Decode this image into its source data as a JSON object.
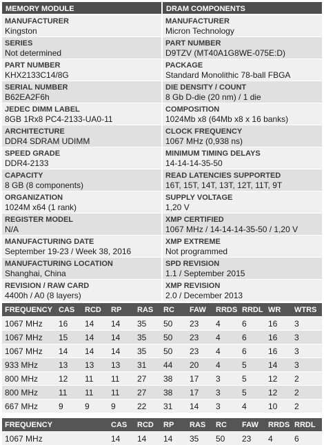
{
  "headers": {
    "left": "MEMORY MODULE",
    "right": "DRAM COMPONENTS"
  },
  "rows": [
    {
      "l": {
        "label": "MANUFACTURER",
        "value": "Kingston"
      },
      "r": {
        "label": "MANUFACTURER",
        "value": "Micron Technology"
      }
    },
    {
      "l": {
        "label": "SERIES",
        "value": "Not determined"
      },
      "r": {
        "label": "PART NUMBER",
        "value": "D9TZV (MT40A1G8WE-075E:D)"
      }
    },
    {
      "l": {
        "label": "PART NUMBER",
        "value": "KHX2133C14/8G"
      },
      "r": {
        "label": "PACKAGE",
        "value": "Standard Monolithic 78-ball FBGA"
      }
    },
    {
      "l": {
        "label": "SERIAL NUMBER",
        "value": "B62EA2F6h"
      },
      "r": {
        "label": "DIE DENSITY / COUNT",
        "value": "8 Gb D-die (20 nm) / 1 die"
      }
    },
    {
      "l": {
        "label": "JEDEC DIMM LABEL",
        "value": "8GB 1Rx8 PC4-2133-UA0-11"
      },
      "r": {
        "label": "COMPOSITION",
        "value": "1024Mb x8 (64Mb x8 x 16 banks)"
      }
    },
    {
      "l": {
        "label": "ARCHITECTURE",
        "value": "DDR4 SDRAM UDIMM"
      },
      "r": {
        "label": "CLOCK FREQUENCY",
        "value": "1067 MHz (0,938 ns)"
      }
    },
    {
      "l": {
        "label": "SPEED GRADE",
        "value": "DDR4-2133"
      },
      "r": {
        "label": "MINIMUM TIMING DELAYS",
        "value": "14-14-14-35-50"
      }
    },
    {
      "l": {
        "label": "CAPACITY",
        "value": "8 GB (8 components)"
      },
      "r": {
        "label": "READ LATENCIES SUPPORTED",
        "value": "16T, 15T, 14T, 13T, 12T, 11T, 9T"
      }
    },
    {
      "l": {
        "label": "ORGANIZATION",
        "value": "1024M x64 (1 rank)"
      },
      "r": {
        "label": "SUPPLY VOLTAGE",
        "value": "1,20 V"
      }
    },
    {
      "l": {
        "label": "REGISTER MODEL",
        "value": "N/A"
      },
      "r": {
        "label": "XMP CERTIFIED",
        "value": "1067 MHz / 14-14-14-35-50 / 1,20 V"
      }
    },
    {
      "l": {
        "label": "MANUFACTURING DATE",
        "value": "September 19-23 / Week 38, 2016"
      },
      "r": {
        "label": "XMP EXTREME",
        "value": "Not programmed"
      }
    },
    {
      "l": {
        "label": "MANUFACTURING LOCATION",
        "value": "Shanghai, China"
      },
      "r": {
        "label": "SPD REVISION",
        "value": "1.1 / September 2015"
      }
    },
    {
      "l": {
        "label": "REVISION / RAW CARD",
        "value": "4400h / A0 (8 layers)"
      },
      "r": {
        "label": "XMP REVISION",
        "value": "2.0 / December 2013"
      }
    }
  ],
  "timings": {
    "columns": [
      "FREQUENCY",
      "CAS",
      "RCD",
      "RP",
      "RAS",
      "RC",
      "FAW",
      "RRDS",
      "RRDL",
      "WR",
      "WTRS"
    ],
    "rows": [
      [
        "1067 MHz",
        "16",
        "14",
        "14",
        "35",
        "50",
        "23",
        "4",
        "6",
        "16",
        "3"
      ],
      [
        "1067 MHz",
        "15",
        "14",
        "14",
        "35",
        "50",
        "23",
        "4",
        "6",
        "16",
        "3"
      ],
      [
        "1067 MHz",
        "14",
        "14",
        "14",
        "35",
        "50",
        "23",
        "4",
        "6",
        "16",
        "3"
      ],
      [
        "933 MHz",
        "13",
        "13",
        "13",
        "31",
        "44",
        "20",
        "4",
        "5",
        "14",
        "3"
      ],
      [
        "800 MHz",
        "12",
        "11",
        "11",
        "27",
        "38",
        "17",
        "3",
        "5",
        "12",
        "2"
      ],
      [
        "800 MHz",
        "11",
        "11",
        "11",
        "27",
        "38",
        "17",
        "3",
        "5",
        "12",
        "2"
      ],
      [
        "667 MHz",
        "9",
        "9",
        "9",
        "22",
        "31",
        "14",
        "3",
        "4",
        "10",
        "2"
      ]
    ]
  },
  "xmp": {
    "columns": [
      "FREQUENCY",
      "",
      "CAS",
      "RCD",
      "RP",
      "RAS",
      "RC",
      "FAW",
      "RRDS",
      "RRDL"
    ],
    "rows": [
      [
        "1067 MHz",
        "",
        "14",
        "14",
        "14",
        "35",
        "50",
        "23",
        "4",
        "6"
      ]
    ]
  }
}
